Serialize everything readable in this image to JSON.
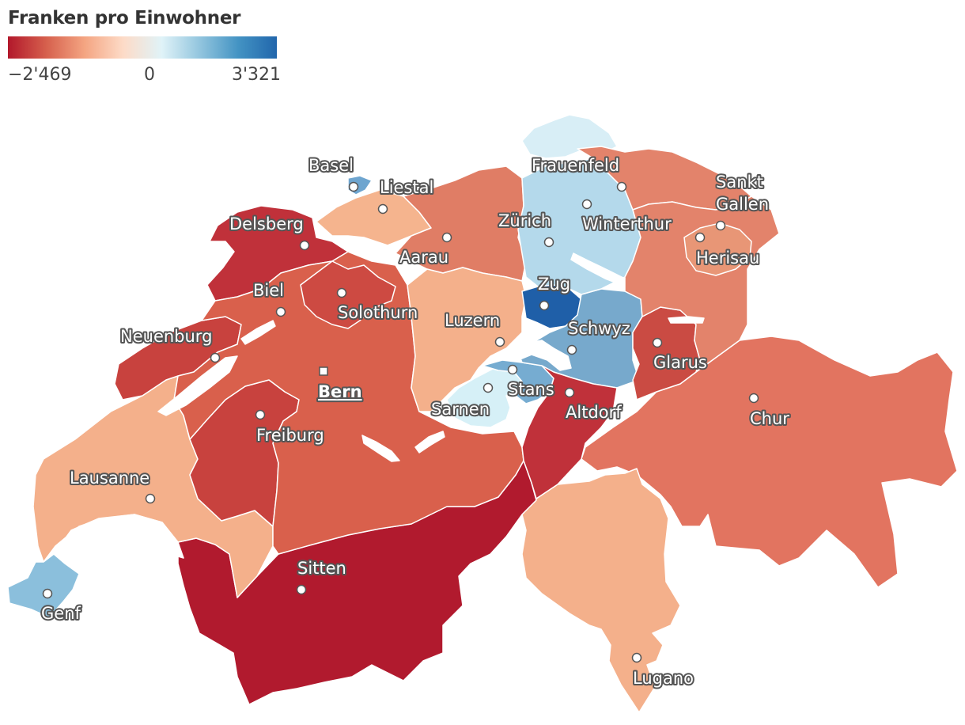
{
  "legend": {
    "title": "Franken pro Einwohner",
    "min_label": "−2'469",
    "zero_label": "0",
    "max_label": "3'321",
    "min_value": -2469,
    "max_value": 3321,
    "colors": [
      "#b2182b",
      "#d6604d",
      "#f4a582",
      "#fddbc7",
      "#e0f3f8",
      "#92c5de",
      "#4393c3",
      "#2166ac"
    ]
  },
  "regions": {
    "wallis": "#b11a2e",
    "jura": "#c0313a",
    "bern": "#d9604c",
    "freiburg": "#c8423e",
    "neuenburg": "#c8423e",
    "waadt": "#f4b08b",
    "genf": "#8bbfdc",
    "solothurn": "#cd4a42",
    "baselstadt": "#6ea5cf",
    "baselland": "#f5b48e",
    "aargau": "#e07d65",
    "luzern": "#f4b08b",
    "obwalden": "#d6f0f7",
    "nidwalden": "#76acd1",
    "zug": "#1f5fa8",
    "schwyz": "#77a9cc",
    "uri": "#c0313a",
    "glarus": "#ca4b43",
    "zuerich": "#b4d9eb",
    "schaffhausen": "#d8eef6",
    "thurgau": "#e3836b",
    "stgallen": "#e3836b",
    "appenzell": "#e89676",
    "graubuenden": "#e27460",
    "tessin": "#f4b08b",
    "lake": "#ffffff"
  },
  "cities": [
    {
      "name": "Basel"
    },
    {
      "name": "Liestal"
    },
    {
      "name": "Delsberg"
    },
    {
      "name": "Aarau"
    },
    {
      "name": "Frauenfeld"
    },
    {
      "name": "Zürich"
    },
    {
      "name": "Winterthur"
    },
    {
      "name": "Sankt"
    },
    {
      "name": "Gallen"
    },
    {
      "name": "Herisau"
    },
    {
      "name": "Zug"
    },
    {
      "name": "Biel"
    },
    {
      "name": "Solothurn"
    },
    {
      "name": "Luzern"
    },
    {
      "name": "Schwyz"
    },
    {
      "name": "Neuenburg"
    },
    {
      "name": "Glarus"
    },
    {
      "name": "Bern"
    },
    {
      "name": "Stans"
    },
    {
      "name": "Altdorf"
    },
    {
      "name": "Sarnen"
    },
    {
      "name": "Chur"
    },
    {
      "name": "Freiburg"
    },
    {
      "name": "Lausanne"
    },
    {
      "name": "Sitten"
    },
    {
      "name": "Genf"
    },
    {
      "name": "Lugano"
    }
  ]
}
